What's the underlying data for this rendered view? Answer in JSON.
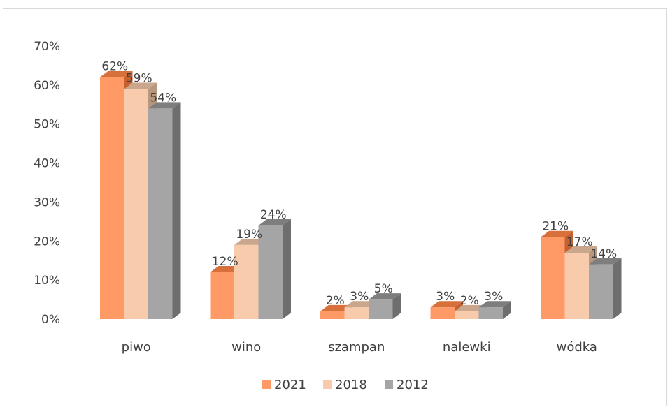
{
  "chart_data": {
    "type": "bar",
    "title": "",
    "xlabel": "",
    "ylabel": "",
    "categories": [
      "piwo",
      "wino",
      "szampan",
      "nalewki",
      "wódka"
    ],
    "series": [
      {
        "name": "2021",
        "values": [
          62,
          12,
          2,
          3,
          21
        ],
        "labels": [
          "62%",
          "12%",
          "2%",
          "3%",
          "21%"
        ],
        "color": "#FF9966",
        "side_color": "#C7602F",
        "top_color": "#D8703C"
      },
      {
        "name": "2018",
        "values": [
          59,
          19,
          3,
          2,
          17
        ],
        "labels": [
          "59%",
          "19%",
          "3%",
          "2%",
          "17%"
        ],
        "color": "#F8CBAD",
        "side_color": "#B8977F",
        "top_color": "#C9A68C"
      },
      {
        "name": "2012",
        "values": [
          54,
          24,
          5,
          3,
          14
        ],
        "labels": [
          "54%",
          "24%",
          "5%",
          "3%",
          "14%"
        ],
        "color": "#A5A5A5",
        "side_color": "#6E6E6E",
        "top_color": "#7E7E7E"
      }
    ],
    "ylim": [
      0,
      70
    ],
    "yticks": [
      0,
      10,
      20,
      30,
      40,
      50,
      60,
      70
    ],
    "ytick_labels": [
      "0%",
      "10%",
      "20%",
      "30%",
      "40%",
      "50%",
      "60%",
      "70%"
    ],
    "grid": false,
    "legend_position": "bottom",
    "bar_style": "3d-column"
  }
}
